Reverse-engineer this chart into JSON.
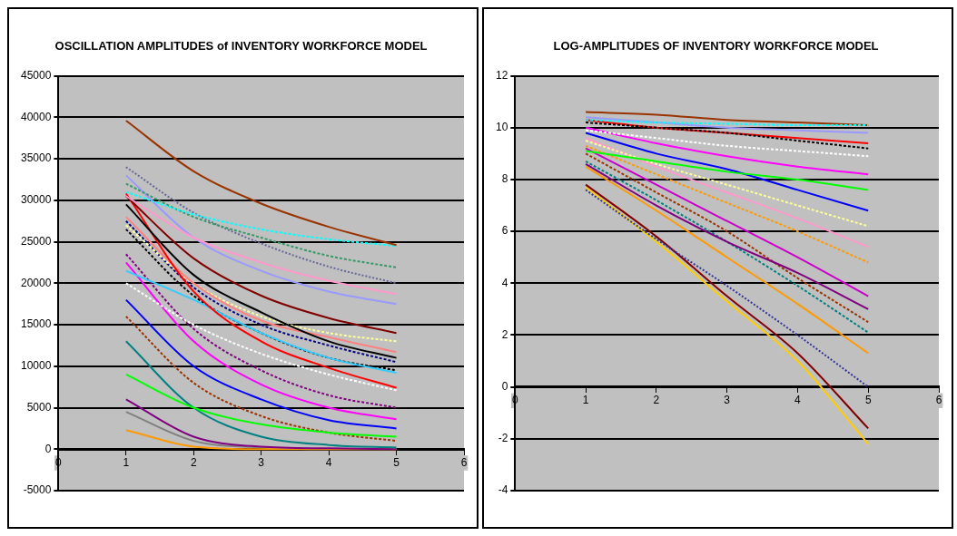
{
  "chart_data": [
    {
      "type": "line",
      "title": "OSCILLATION AMPLITUDES of INVENTORY WORKFORCE MODEL",
      "x": [
        1,
        2,
        3,
        4,
        5
      ],
      "xlim": [
        0,
        6
      ],
      "xticks": [
        0,
        1,
        2,
        3,
        4,
        5,
        6
      ],
      "ylim": [
        -5000,
        45000
      ],
      "yticks": [
        -5000,
        0,
        5000,
        10000,
        15000,
        20000,
        25000,
        30000,
        35000,
        40000,
        45000
      ],
      "grid": "y",
      "legend": false,
      "marker": "none",
      "series": [
        {
          "color": "#993300",
          "values": [
            39600,
            33500,
            29600,
            26800,
            24600
          ],
          "line_style": "solid"
        },
        {
          "color": "#00ffff",
          "values": [
            31000,
            28300,
            26500,
            25300,
            24500
          ],
          "line_style": "dashed"
        },
        {
          "color": "#339966",
          "values": [
            32000,
            28000,
            25500,
            23300,
            21900
          ],
          "line_style": "dashed"
        },
        {
          "color": "#666699",
          "values": [
            34000,
            28500,
            24800,
            22000,
            20000
          ],
          "line_style": "dotted"
        },
        {
          "color": "#ff99cc",
          "values": [
            30500,
            25500,
            22500,
            20300,
            18700
          ],
          "line_style": "solid"
        },
        {
          "color": "#9999ff",
          "values": [
            33000,
            25500,
            21500,
            19000,
            17500
          ],
          "line_style": "solid"
        },
        {
          "color": "#800000",
          "values": [
            30500,
            23000,
            18500,
            15800,
            14000
          ],
          "line_style": "solid"
        },
        {
          "color": "#000000",
          "values": [
            29500,
            21000,
            16500,
            13000,
            11000
          ],
          "line_style": "solid"
        },
        {
          "color": "#ff0000",
          "values": [
            30800,
            19000,
            13000,
            9800,
            7400
          ],
          "line_style": "solid"
        },
        {
          "color": "#33ccff",
          "values": [
            21500,
            18000,
            14000,
            11000,
            9200
          ],
          "line_style": "solid"
        },
        {
          "color": "#ffffff",
          "values": [
            20000,
            15000,
            11500,
            9000,
            7100
          ],
          "line_style": "dashed"
        },
        {
          "color": "#ff8080",
          "values": [
            28000,
            20000,
            15500,
            13500,
            11700
          ],
          "line_style": "solid"
        },
        {
          "color": "#ffff99",
          "values": [
            27000,
            20000,
            16000,
            14000,
            13000
          ],
          "line_style": "dashed"
        },
        {
          "color": "#000080",
          "values": [
            27500,
            19500,
            15000,
            12500,
            10500
          ],
          "line_style": "dashed"
        },
        {
          "color": "#000000",
          "values": [
            26500,
            18500,
            14000,
            11000,
            9500
          ],
          "line_style": "dashed"
        },
        {
          "color": "#ff00ff",
          "values": [
            22500,
            13000,
            7800,
            5000,
            3600
          ],
          "line_style": "solid"
        },
        {
          "color": "#800080",
          "values": [
            23500,
            14500,
            9500,
            6500,
            5000
          ],
          "line_style": "dashed"
        },
        {
          "color": "#0000ff",
          "values": [
            18000,
            10000,
            6000,
            3500,
            2500
          ],
          "line_style": "solid"
        },
        {
          "color": "#00ff00",
          "values": [
            9000,
            5000,
            3000,
            2000,
            1500
          ],
          "line_style": "solid"
        },
        {
          "color": "#993300",
          "values": [
            16000,
            8000,
            4000,
            2000,
            1000
          ],
          "line_style": "dashed"
        },
        {
          "color": "#008080",
          "values": [
            13000,
            5000,
            1500,
            500,
            200
          ],
          "line_style": "solid"
        },
        {
          "color": "#800080",
          "values": [
            6000,
            1500,
            300,
            100,
            0
          ],
          "line_style": "solid"
        },
        {
          "color": "#ff9900",
          "values": [
            2300,
            300,
            0,
            0,
            0
          ],
          "line_style": "solid"
        },
        {
          "color": "#808080",
          "values": [
            4500,
            1000,
            200,
            0,
            0
          ],
          "line_style": "solid"
        }
      ]
    },
    {
      "type": "line",
      "title": "LOG-AMPLITUDES OF INVENTORY WORKFORCE MODEL",
      "x": [
        1,
        2,
        3,
        4,
        5
      ],
      "xlim": [
        0,
        6
      ],
      "xticks": [
        0,
        1,
        2,
        3,
        4,
        5,
        6
      ],
      "ylim": [
        -4,
        12
      ],
      "yticks": [
        -4,
        -2,
        0,
        2,
        4,
        6,
        8,
        10,
        12
      ],
      "grid": "y",
      "legend": false,
      "marker": "none",
      "series": [
        {
          "color": "#00ffff",
          "values": [
            10.3,
            10.2,
            10.15,
            10.1,
            10.1
          ],
          "line_style": "dashed"
        },
        {
          "color": "#993300",
          "values": [
            10.6,
            10.5,
            10.3,
            10.2,
            10.1
          ],
          "line_style": "solid"
        },
        {
          "color": "#9999ff",
          "values": [
            10.4,
            10.2,
            10,
            9.9,
            9.8
          ],
          "line_style": "solid"
        },
        {
          "color": "#000000",
          "values": [
            10.2,
            10,
            9.8,
            9.5,
            9.2
          ],
          "line_style": "dashed"
        },
        {
          "color": "#ff0000",
          "values": [
            10.3,
            10,
            9.8,
            9.6,
            9.4
          ],
          "line_style": "solid"
        },
        {
          "color": "#ffffff",
          "values": [
            9.9,
            9.6,
            9.3,
            9.1,
            8.9
          ],
          "line_style": "dashed"
        },
        {
          "color": "#ff00ff",
          "values": [
            10,
            9.4,
            8.9,
            8.5,
            8.2
          ],
          "line_style": "solid"
        },
        {
          "color": "#00ff00",
          "values": [
            9.1,
            8.7,
            8.3,
            8,
            7.6
          ],
          "line_style": "solid"
        },
        {
          "color": "#0000ff",
          "values": [
            9.8,
            9,
            8.4,
            7.6,
            6.8
          ],
          "line_style": "solid"
        },
        {
          "color": "#ffff99",
          "values": [
            9.5,
            8.6,
            7.8,
            7,
            6.2
          ],
          "line_style": "dashed"
        },
        {
          "color": "#ff99cc",
          "values": [
            9.6,
            8.5,
            7.5,
            6.5,
            5.4
          ],
          "line_style": "solid"
        },
        {
          "color": "#ff9900",
          "values": [
            9.3,
            8.2,
            7.1,
            6,
            4.8
          ],
          "line_style": "dashed"
        },
        {
          "color": "#cc00cc",
          "values": [
            9.2,
            7.8,
            6.4,
            5,
            3.5
          ],
          "line_style": "solid"
        },
        {
          "color": "#800080",
          "values": [
            8.6,
            7,
            5.6,
            4.4,
            3
          ],
          "line_style": "solid"
        },
        {
          "color": "#993300",
          "values": [
            9,
            7.5,
            6,
            4.2,
            2.5
          ],
          "line_style": "dashed"
        },
        {
          "color": "#008080",
          "values": [
            8.7,
            7.2,
            5.6,
            3.9,
            2.1
          ],
          "line_style": "dashed"
        },
        {
          "color": "#ff9900",
          "values": [
            8.5,
            6.8,
            5,
            3.2,
            1.3
          ],
          "line_style": "solid"
        },
        {
          "color": "#333399",
          "values": [
            7.6,
            5.7,
            3.9,
            2,
            0
          ],
          "line_style": "dotted"
        },
        {
          "color": "#800000",
          "values": [
            7.8,
            5.8,
            3.5,
            1.3,
            -1.6
          ],
          "line_style": "solid"
        },
        {
          "color": "#ffcc00",
          "values": [
            7.7,
            5.6,
            3.3,
            1,
            -2.2
          ],
          "line_style": "solid"
        }
      ]
    }
  ]
}
